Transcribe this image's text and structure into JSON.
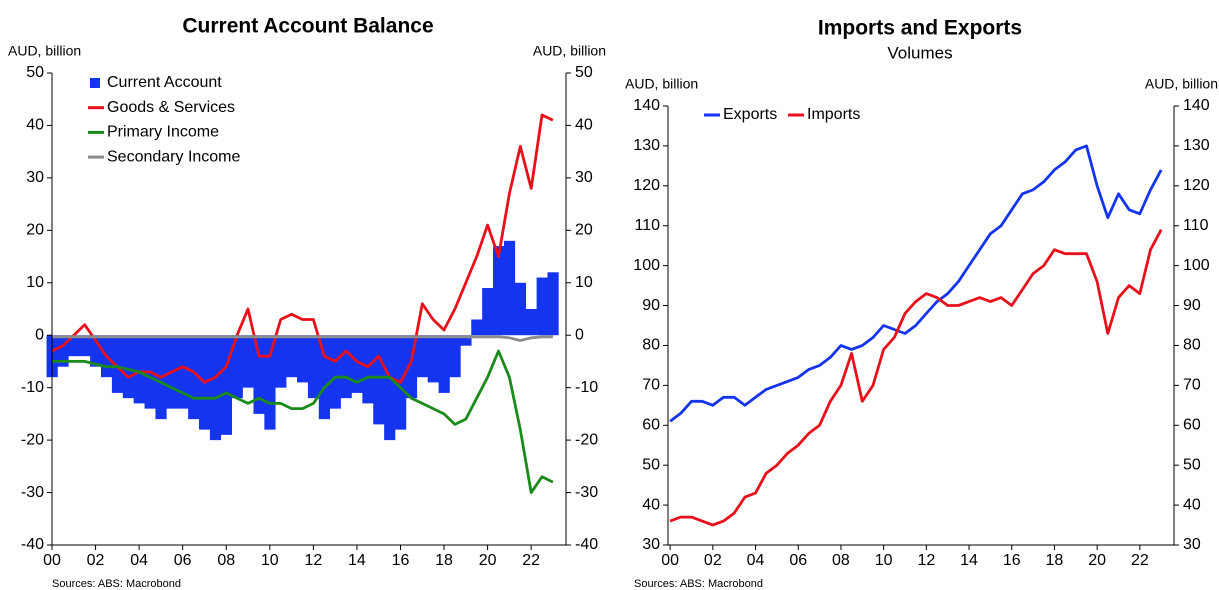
{
  "chart_data": [
    {
      "type": "bar",
      "title": "Current Account Balance",
      "y_label": "AUD, billion",
      "y2_label": "AUD, billion",
      "source": "Sources: ABS: Macrobond",
      "x": [
        2000,
        2000.5,
        2001,
        2001.5,
        2002,
        2002.5,
        2003,
        2003.5,
        2004,
        2004.5,
        2005,
        2005.5,
        2006,
        2006.5,
        2007,
        2007.5,
        2008,
        2008.5,
        2009,
        2009.5,
        2010,
        2010.5,
        2011,
        2011.5,
        2012,
        2012.5,
        2013,
        2013.5,
        2014,
        2014.5,
        2015,
        2015.5,
        2016,
        2016.5,
        2017,
        2017.5,
        2018,
        2018.5,
        2019,
        2019.5,
        2020,
        2020.5,
        2021,
        2021.5,
        2022,
        2022.5,
        2023
      ],
      "series": [
        {
          "name": "Current Account",
          "type": "bar",
          "color": "#1434f0",
          "values": [
            -8,
            -6,
            -4,
            -4,
            -6,
            -8,
            -11,
            -12,
            -13,
            -14,
            -16,
            -14,
            -14,
            -16,
            -18,
            -20,
            -19,
            -12,
            -10,
            -15,
            -18,
            -10,
            -8,
            -9,
            -12,
            -16,
            -14,
            -12,
            -11,
            -13,
            -17,
            -20,
            -18,
            -12,
            -8,
            -9,
            -11,
            -8,
            -2,
            3,
            9,
            17,
            18,
            10,
            5,
            11,
            12
          ]
        },
        {
          "name": "Goods & Services",
          "type": "line",
          "color": "#e8101a",
          "values": [
            -3,
            -2,
            0,
            2,
            -1,
            -4,
            -6,
            -8,
            -7,
            -7,
            -8,
            -7,
            -6,
            -7,
            -9,
            -8,
            -6,
            0,
            5,
            -4,
            -4,
            3,
            4,
            3,
            3,
            -4,
            -5,
            -3,
            -5,
            -6,
            -4,
            -8,
            -9,
            -5,
            6,
            3,
            1,
            5,
            10,
            15,
            21,
            15,
            27,
            36,
            28,
            42,
            41
          ]
        },
        {
          "name": "Primary Income",
          "type": "line",
          "color": "#1a8a1a",
          "values": [
            -5,
            -5,
            -5,
            -5,
            -5.5,
            -6,
            -6,
            -6.5,
            -7,
            -8,
            -9,
            -10,
            -11,
            -12,
            -12,
            -12,
            -11,
            -12,
            -13,
            -12,
            -13,
            -13,
            -14,
            -14,
            -13,
            -10,
            -8,
            -8,
            -9,
            -8,
            -8,
            -8,
            -10,
            -12,
            -13,
            -14,
            -15,
            -17,
            -16,
            -12,
            -8,
            -3,
            -8,
            -18,
            -30,
            -27,
            -28
          ]
        },
        {
          "name": "Secondary Income",
          "type": "line",
          "color": "#8c8c8c",
          "values": [
            -0.3,
            -0.3,
            -0.3,
            -0.3,
            -0.3,
            -0.3,
            -0.3,
            -0.3,
            -0.3,
            -0.3,
            -0.3,
            -0.3,
            -0.3,
            -0.3,
            -0.3,
            -0.3,
            -0.3,
            -0.3,
            -0.3,
            -0.3,
            -0.3,
            -0.3,
            -0.3,
            -0.3,
            -0.3,
            -0.3,
            -0.3,
            -0.3,
            -0.3,
            -0.3,
            -0.3,
            -0.3,
            -0.3,
            -0.3,
            -0.3,
            -0.3,
            -0.3,
            -0.3,
            -0.3,
            -0.3,
            -0.3,
            -0.3,
            -0.5,
            -1,
            -0.5,
            -0.3,
            -0.3
          ]
        }
      ],
      "xlim": [
        2000,
        2023.6
      ],
      "xticks": [
        {
          "value": 2000,
          "label": "00"
        },
        {
          "value": 2002,
          "label": "02"
        },
        {
          "value": 2004,
          "label": "04"
        },
        {
          "value": 2006,
          "label": "06"
        },
        {
          "value": 2008,
          "label": "08"
        },
        {
          "value": 2010,
          "label": "10"
        },
        {
          "value": 2012,
          "label": "12"
        },
        {
          "value": 2014,
          "label": "14"
        },
        {
          "value": 2016,
          "label": "16"
        },
        {
          "value": 2018,
          "label": "18"
        },
        {
          "value": 2020,
          "label": "20"
        },
        {
          "value": 2022,
          "label": "22"
        }
      ],
      "ylim": [
        -40,
        50
      ],
      "yticks": [
        -40,
        -30,
        -20,
        -10,
        0,
        10,
        20,
        30,
        40,
        50
      ],
      "y2lim": [
        -40,
        50
      ],
      "y2ticks": [
        -40,
        -30,
        -20,
        -10,
        0,
        10,
        20,
        30,
        40,
        50
      ],
      "legend": "upper left",
      "legend_layout": "vertical"
    },
    {
      "type": "line",
      "title": "Imports and Exports",
      "subtitle": "Volumes",
      "y_label": "AUD, billion",
      "y2_label": "AUD, billion",
      "source": "Sources: ABS: Macrobond",
      "x": [
        2000,
        2000.5,
        2001,
        2001.5,
        2002,
        2002.5,
        2003,
        2003.5,
        2004,
        2004.5,
        2005,
        2005.5,
        2006,
        2006.5,
        2007,
        2007.5,
        2008,
        2008.5,
        2009,
        2009.5,
        2010,
        2010.5,
        2011,
        2011.5,
        2012,
        2012.5,
        2013,
        2013.5,
        2014,
        2014.5,
        2015,
        2015.5,
        2016,
        2016.5,
        2017,
        2017.5,
        2018,
        2018.5,
        2019,
        2019.5,
        2020,
        2020.5,
        2021,
        2021.5,
        2022,
        2022.5,
        2023
      ],
      "series": [
        {
          "name": "Exports",
          "color": "#1434f0",
          "values": [
            61,
            63,
            66,
            66,
            65,
            67,
            67,
            65,
            67,
            69,
            70,
            71,
            72,
            74,
            75,
            77,
            80,
            79,
            80,
            82,
            85,
            84,
            83,
            85,
            88,
            91,
            93,
            96,
            100,
            104,
            108,
            110,
            114,
            118,
            119,
            121,
            124,
            126,
            129,
            130,
            120,
            112,
            118,
            114,
            113,
            119,
            124
          ]
        },
        {
          "name": "Imports",
          "color": "#e8101a",
          "values": [
            36,
            37,
            37,
            36,
            35,
            36,
            38,
            42,
            43,
            48,
            50,
            53,
            55,
            58,
            60,
            66,
            70,
            78,
            66,
            70,
            79,
            82,
            88,
            91,
            93,
            92,
            90,
            90,
            91,
            92,
            91,
            92,
            90,
            94,
            98,
            100,
            104,
            103,
            103,
            103,
            96,
            83,
            92,
            95,
            93,
            104,
            109
          ]
        }
      ],
      "xlim": [
        1999.9,
        2023.6
      ],
      "xticks": [
        {
          "value": 2000,
          "label": "00"
        },
        {
          "value": 2002,
          "label": "02"
        },
        {
          "value": 2004,
          "label": "04"
        },
        {
          "value": 2006,
          "label": "06"
        },
        {
          "value": 2008,
          "label": "08"
        },
        {
          "value": 2010,
          "label": "10"
        },
        {
          "value": 2012,
          "label": "12"
        },
        {
          "value": 2014,
          "label": "14"
        },
        {
          "value": 2016,
          "label": "16"
        },
        {
          "value": 2018,
          "label": "18"
        },
        {
          "value": 2020,
          "label": "20"
        },
        {
          "value": 2022,
          "label": "22"
        }
      ],
      "ylim": [
        30,
        140
      ],
      "yticks": [
        30,
        40,
        50,
        60,
        70,
        80,
        90,
        100,
        110,
        120,
        130,
        140
      ],
      "y2lim": [
        30,
        140
      ],
      "y2ticks": [
        30,
        40,
        50,
        60,
        70,
        80,
        90,
        100,
        110,
        120,
        130,
        140
      ],
      "legend": "upper left",
      "legend_layout": "horizontal"
    }
  ]
}
